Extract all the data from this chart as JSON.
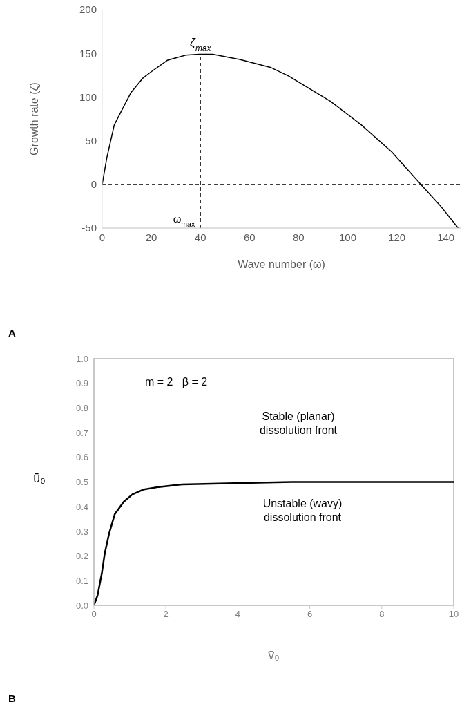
{
  "chart_data": [
    {
      "type": "line",
      "xlabel": "Wave number (ω)",
      "ylabel": "Growth rate (ζ)",
      "x": [
        0,
        1.85,
        4.9,
        8,
        11.7,
        16.7,
        20,
        26.5,
        34,
        39.5,
        45,
        56,
        68.5,
        76,
        93,
        105.6,
        118,
        130.4,
        137.6,
        145
      ],
      "series": [
        {
          "color": "#000000",
          "values": [
            0,
            30,
            68,
            85,
            105,
            122,
            129,
            142,
            148,
            149,
            149,
            143,
            134,
            124,
            95,
            68,
            37,
            -2,
            -24,
            -50
          ]
        }
      ],
      "xlim": [
        0,
        146
      ],
      "xticks": [
        0,
        20,
        40,
        60,
        80,
        100,
        120,
        140
      ],
      "ylim": [
        -50,
        200
      ],
      "yticks": [
        -50,
        0,
        50,
        100,
        150,
        200
      ],
      "marker": "none",
      "line_style": "solid",
      "ref_lines": [
        {
          "axis": "y",
          "value": 0,
          "line_style": "dashed",
          "color": "#000000"
        },
        {
          "axis": "x",
          "value": 40,
          "line_style": "dashed",
          "color": "#000000"
        }
      ],
      "annotations": [
        {
          "text": "ζ$_{max}$",
          "x": 40,
          "y": 150
        },
        {
          "text": "ω$_{max}$",
          "x": 40,
          "y": -50
        },
        "A"
      ]
    },
    {
      "type": "line",
      "xlabel": "v̄₀",
      "ylabel": "ū₀",
      "x": [
        0,
        0.1,
        0.22,
        0.3,
        0.42,
        0.58,
        0.83,
        1.07,
        1.39,
        1.8,
        2.45,
        3.9,
        5.5,
        10
      ],
      "series": [
        {
          "color": "#000000",
          "values": [
            0,
            0.04,
            0.13,
            0.21,
            0.29,
            0.37,
            0.42,
            0.45,
            0.47,
            0.48,
            0.49,
            0.495,
            0.5,
            0.5
          ]
        }
      ],
      "xlim": [
        0,
        10
      ],
      "xticks": [
        0,
        2,
        4,
        6,
        8,
        10
      ],
      "ylim": [
        0,
        1
      ],
      "yticks": [
        {
          "value": 0,
          "label": "0.0"
        },
        0.1,
        0.2,
        0.3,
        0.4,
        0.5,
        0.6,
        0.7,
        0.8,
        0.9,
        {
          "value": 1,
          "label": "1.0"
        }
      ],
      "marker": "none",
      "line_style": "solid",
      "annotations": [
        "m = 2   β = 2",
        "Stable (planar)\ndissolution front",
        "Unstable (wavy)\ndissolution front",
        "B"
      ]
    }
  ]
}
